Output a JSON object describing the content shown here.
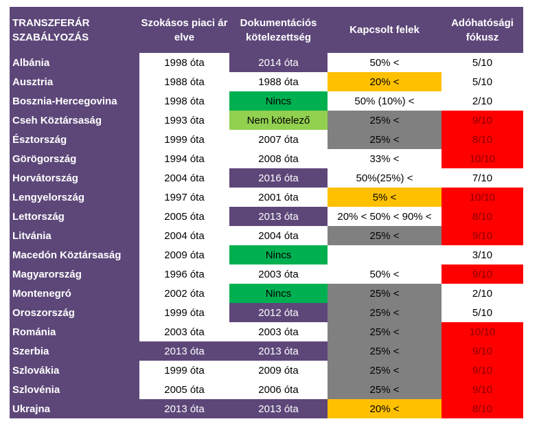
{
  "header": {
    "country": "TRANSZFERÁR SZABÁLYOZÁS",
    "arm_length": "Szokásos piaci ár elve",
    "documentation": "Dokumentációs kötelezettség",
    "related_parties": "Kapcsolt felek",
    "tax_focus": "Adóhatósági fókusz"
  },
  "colors": {
    "purple": "#5d4779",
    "green": "#00b050",
    "lightgreen": "#92d050",
    "orange": "#ffc000",
    "gray": "#808080",
    "red": "#ff0000",
    "white": "#ffffff"
  },
  "rows": [
    {
      "country": "Albánia",
      "arm": "1998 óta",
      "arm_bg": "white",
      "doc": "2014 óta",
      "doc_bg": "purple",
      "rel": "50%  <",
      "rel_bg": "white",
      "focus": "5/10",
      "focus_bg": "white"
    },
    {
      "country": "Ausztria",
      "arm": "1988 óta",
      "arm_bg": "white",
      "doc": "1988 óta",
      "doc_bg": "white",
      "rel": "20%  <",
      "rel_bg": "orange",
      "focus": "5/10",
      "focus_bg": "white"
    },
    {
      "country": "Bosznia-Hercegovina",
      "arm": "1998 óta",
      "arm_bg": "white",
      "doc": "Nincs",
      "doc_bg": "green",
      "rel": "50% (10%)  <",
      "rel_bg": "white",
      "focus": "2/10",
      "focus_bg": "white"
    },
    {
      "country": "Cseh Köztársaság",
      "arm": "1993 óta",
      "arm_bg": "white",
      "doc": "Nem kötelező",
      "doc_bg": "lightgreen",
      "rel": "25%  <",
      "rel_bg": "gray",
      "focus": "9/10",
      "focus_bg": "red"
    },
    {
      "country": "Észtország",
      "arm": "1999 óta",
      "arm_bg": "white",
      "doc": "2007 óta",
      "doc_bg": "white",
      "rel": "25% <",
      "rel_bg": "gray",
      "focus": "8/10",
      "focus_bg": "red"
    },
    {
      "country": "Görögország",
      "arm": "1994 óta",
      "arm_bg": "white",
      "doc": "2008 óta",
      "doc_bg": "white",
      "rel": "33% <",
      "rel_bg": "white",
      "focus": "10/10",
      "focus_bg": "red"
    },
    {
      "country": "Horvátország",
      "arm": "2004 óta",
      "arm_bg": "white",
      "doc": "2016 óta",
      "doc_bg": "purple",
      "rel": "50%(25%)  <",
      "rel_bg": "white",
      "focus": "7/10",
      "focus_bg": "white"
    },
    {
      "country": "Lengyelország",
      "arm": "1997 óta",
      "arm_bg": "white",
      "doc": "2001 óta",
      "doc_bg": "white",
      "rel": "5%  <",
      "rel_bg": "orange",
      "focus": "10/10",
      "focus_bg": "red"
    },
    {
      "country": "Lettország",
      "arm": "2005 óta",
      "arm_bg": "white",
      "doc": "2013 óta",
      "doc_bg": "purple",
      "rel": "20% < 50% < 90% <",
      "rel_bg": "white",
      "focus": "8/10",
      "focus_bg": "red"
    },
    {
      "country": "Litvánia",
      "arm": "2004 óta",
      "arm_bg": "white",
      "doc": "2004 óta",
      "doc_bg": "white",
      "rel": "25%  <",
      "rel_bg": "gray",
      "focus": "9/10",
      "focus_bg": "red"
    },
    {
      "country": "Macedón Köztársaság",
      "arm": "2009 óta",
      "arm_bg": "white",
      "doc": "Nincs",
      "doc_bg": "green",
      "rel": "",
      "rel_bg": "white",
      "focus": "3/10",
      "focus_bg": "white"
    },
    {
      "country": "Magyarország",
      "arm": "1996 óta",
      "arm_bg": "white",
      "doc": "2003 óta",
      "doc_bg": "white",
      "rel": "50%  <",
      "rel_bg": "white",
      "focus": "9/10",
      "focus_bg": "red"
    },
    {
      "country": "Montenegró",
      "arm": "2002 óta",
      "arm_bg": "white",
      "doc": "Nincs",
      "doc_bg": "green",
      "rel": "25%  <",
      "rel_bg": "gray",
      "focus": "2/10",
      "focus_bg": "white"
    },
    {
      "country": "Oroszország",
      "arm": "1999 óta",
      "arm_bg": "white",
      "doc": "2012 óta",
      "doc_bg": "purple",
      "rel": "25%  <",
      "rel_bg": "gray",
      "focus": "5/10",
      "focus_bg": "white"
    },
    {
      "country": "Románia",
      "arm": "2003 óta",
      "arm_bg": "white",
      "doc": "2003 óta",
      "doc_bg": "white",
      "rel": "25% <",
      "rel_bg": "gray",
      "focus": "10/10",
      "focus_bg": "red"
    },
    {
      "country": "Szerbia",
      "arm": "2013 óta",
      "arm_bg": "purple",
      "doc": "2013 óta",
      "doc_bg": "purple",
      "rel": "25%  <",
      "rel_bg": "gray",
      "focus": "9/10",
      "focus_bg": "red"
    },
    {
      "country": "Szlovákia",
      "arm": "1999 óta",
      "arm_bg": "white",
      "doc": "2009 óta",
      "doc_bg": "white",
      "rel": "25%  <",
      "rel_bg": "gray",
      "focus": "9/10",
      "focus_bg": "red"
    },
    {
      "country": "Szlovénia",
      "arm": "2005 óta",
      "arm_bg": "white",
      "doc": "2006 óta",
      "doc_bg": "white",
      "rel": "25%  <",
      "rel_bg": "gray",
      "focus": "9/10",
      "focus_bg": "red"
    },
    {
      "country": "Ukrajna",
      "arm": "2013 óta",
      "arm_bg": "purple",
      "doc": "2013 óta",
      "doc_bg": "purple",
      "rel": "20% <",
      "rel_bg": "orange",
      "focus": "8/10",
      "focus_bg": "red"
    }
  ]
}
